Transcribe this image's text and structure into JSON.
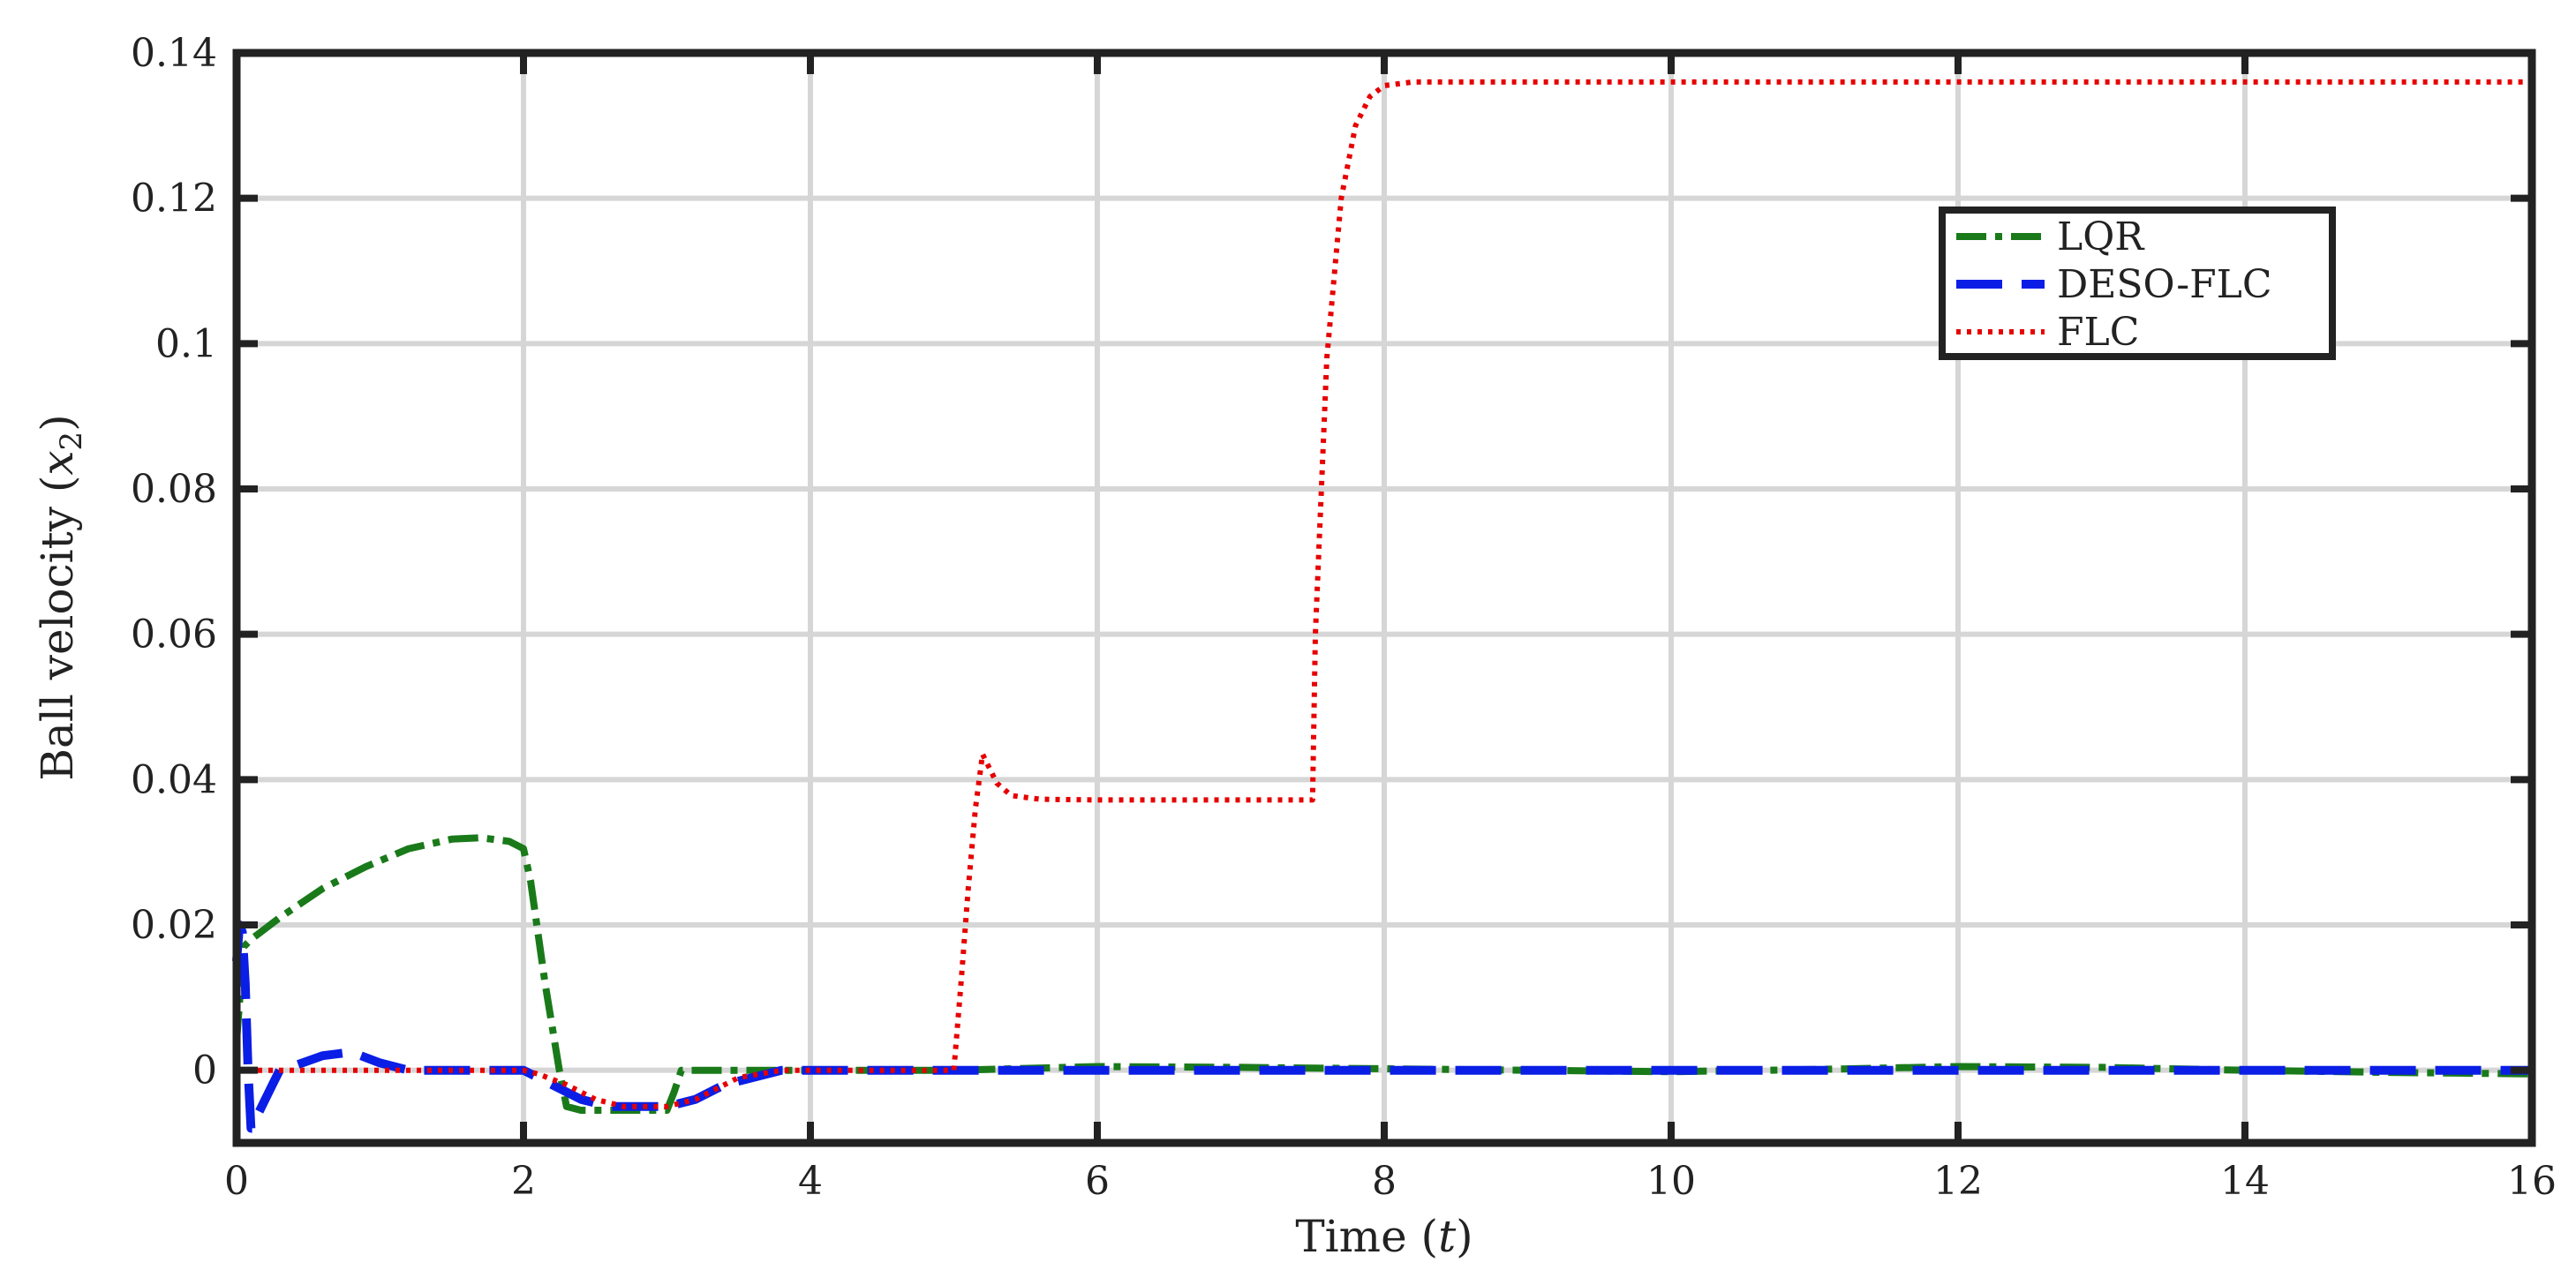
{
  "chart_data": {
    "type": "line",
    "xlabel": "Time (t)",
    "xlabel_parts": {
      "prefix": "Time (",
      "var": "t",
      "suffix": ")"
    },
    "ylabel": "Ball velocity (x2)",
    "ylabel_parts": {
      "prefix": "Ball velocity (",
      "var": "x",
      "sub": "2",
      "suffix": ")"
    },
    "xlim": [
      0,
      16
    ],
    "ylim": [
      -0.01,
      0.14
    ],
    "xticks": [
      0,
      2,
      4,
      6,
      8,
      10,
      12,
      14,
      16
    ],
    "xtick_labels": [
      "0",
      "2",
      "4",
      "6",
      "8",
      "10",
      "12",
      "14",
      "16"
    ],
    "yticks": [
      0,
      0.02,
      0.04,
      0.06,
      0.08,
      0.1,
      0.12,
      0.14
    ],
    "ytick_labels": [
      "0",
      "0.02",
      "0.04",
      "0.06",
      "0.08",
      "0.1",
      "0.12",
      "0.14"
    ],
    "grid": true,
    "legend_position": "top-right",
    "series": [
      {
        "name": "LQR",
        "color": "#1a7a1a",
        "style": "dashdot",
        "x": [
          0,
          0.05,
          0.1,
          0.3,
          0.6,
          0.9,
          1.2,
          1.5,
          1.7,
          1.9,
          2.0,
          2.05,
          2.15,
          2.25,
          2.3,
          2.4,
          2.6,
          2.8,
          3.0,
          3.05,
          3.1,
          3.5,
          4,
          5,
          6,
          7,
          8,
          9,
          10,
          11,
          12,
          13,
          14,
          15,
          16
        ],
        "y": [
          0.004,
          0.017,
          0.018,
          0.021,
          0.025,
          0.028,
          0.0305,
          0.0318,
          0.032,
          0.0315,
          0.0305,
          0.026,
          0.012,
          0.0,
          -0.005,
          -0.0055,
          -0.0055,
          -0.0055,
          -0.0055,
          -0.003,
          0.0,
          0.0,
          0.0,
          0.0,
          0.0005,
          0.0004,
          0.0002,
          0.0,
          -0.0002,
          0.0001,
          0.0005,
          0.0004,
          0.0,
          -0.0003,
          -0.0005
        ]
      },
      {
        "name": "DESO-FLC",
        "color": "#0a1ee6",
        "style": "dashed",
        "x": [
          0,
          0.02,
          0.04,
          0.06,
          0.08,
          0.1,
          0.12,
          0.15,
          0.2,
          0.25,
          0.3,
          0.4,
          0.6,
          0.8,
          1.0,
          1.2,
          1.6,
          2.0,
          2.2,
          2.4,
          2.6,
          2.8,
          3.0,
          3.2,
          3.4,
          3.6,
          3.8,
          4,
          5,
          6,
          8,
          10,
          12,
          14,
          16
        ],
        "y": [
          0.015,
          0.02,
          0.019,
          0.012,
          0.0,
          -0.008,
          -0.008,
          -0.006,
          -0.004,
          -0.002,
          0.0,
          0.0006,
          0.002,
          0.0025,
          0.001,
          0.0,
          0.0,
          0.0,
          -0.002,
          -0.004,
          -0.005,
          -0.005,
          -0.005,
          -0.004,
          -0.002,
          -0.001,
          0.0,
          0.0,
          0.0,
          0.0,
          0.0,
          0.0,
          0.0,
          0.0,
          0.0
        ]
      },
      {
        "name": "FLC",
        "color": "#e60000",
        "style": "dotted",
        "x": [
          0,
          1,
          2,
          2.1,
          2.3,
          2.5,
          2.7,
          3.0,
          3.2,
          3.5,
          3.8,
          4,
          4.5,
          5.0,
          5.05,
          5.1,
          5.15,
          5.2,
          5.25,
          5.3,
          5.4,
          5.6,
          6.0,
          6.5,
          7.0,
          7.5,
          7.52,
          7.6,
          7.7,
          7.8,
          7.9,
          8.0,
          8.2,
          9,
          10,
          12,
          14,
          16
        ],
        "y": [
          0.0,
          0.0,
          0.0,
          -0.0005,
          -0.002,
          -0.004,
          -0.005,
          -0.005,
          -0.004,
          -0.001,
          0.0,
          0.0,
          0.0,
          0.0,
          0.012,
          0.025,
          0.036,
          0.0435,
          0.0415,
          0.0395,
          0.0378,
          0.0373,
          0.0372,
          0.0372,
          0.0372,
          0.0372,
          0.06,
          0.098,
          0.12,
          0.13,
          0.134,
          0.1355,
          0.136,
          0.136,
          0.136,
          0.136,
          0.136,
          0.136
        ]
      }
    ]
  }
}
